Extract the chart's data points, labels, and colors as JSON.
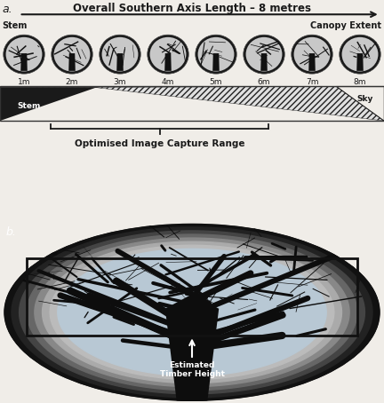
{
  "fig_width": 4.32,
  "fig_height": 4.54,
  "dpi": 100,
  "bg_color": "#f0ede8",
  "panel_a_label": "a.",
  "panel_b_label": "b.",
  "title_arrow_text": "Overall Southern Axis Length – 8 metres",
  "stem_label": "Stem",
  "canopy_label": "Canopy Extent",
  "sky_label": "Sky",
  "stem_label2": "Stem",
  "distance_labels": [
    "1m",
    "2m",
    "3m",
    "4m",
    "5m",
    "6m",
    "7m",
    "8m"
  ],
  "capture_range_label": "Optimised Image Capture Range",
  "estimated_height_label": "Estimated\nTimber Height",
  "fisheye_positions": [
    0.5,
    1.5,
    2.5,
    3.5,
    4.5,
    5.5,
    6.5,
    7.5
  ],
  "hatch_pattern": "/////",
  "arrow_color": "#1a1a1a",
  "text_color": "#1a1a1a",
  "bracket_color": "#1a1a1a",
  "label_fontsize": 7,
  "title_fontsize": 8.5,
  "capture_fontsize": 7.5
}
